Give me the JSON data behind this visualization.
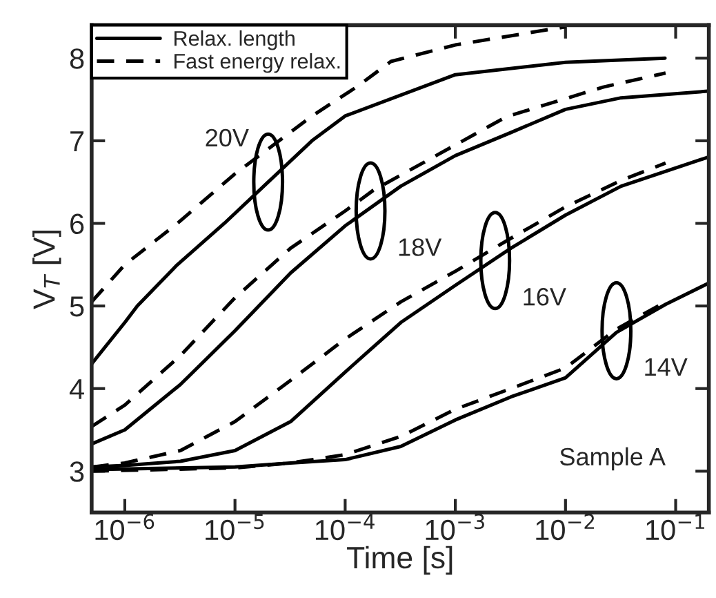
{
  "chart_data": {
    "type": "line",
    "xlabel": "Time [s]",
    "ylabel": "V$_{T}$ [V]",
    "log": "x",
    "legend": "top left",
    "marker": "none",
    "xlim": [
      5e-07,
      0.2
    ],
    "ylim": [
      2.5,
      8.4
    ],
    "xticks": [
      {
        "value": 1e-06,
        "label": "10$^{−6}$"
      },
      {
        "value": 1e-05,
        "label": "10$^{−5}$"
      },
      {
        "value": 0.0001,
        "label": "10$^{−4}$"
      },
      {
        "value": 0.001,
        "label": "10$^{−3}$"
      },
      {
        "value": 0.01,
        "label": "10$^{−2}$"
      },
      {
        "value": 0.1,
        "label": "10$^{−1}$"
      }
    ],
    "yticks": [
      3,
      4,
      5,
      6,
      7,
      8
    ],
    "series": [
      {
        "name": "Relax. length",
        "color": "#000000",
        "line_style": "solid",
        "x": [
          5e-07,
          1e-06,
          1.3e-06,
          3e-06,
          8e-06,
          2e-05,
          5e-05,
          0.0001,
          0.001,
          0.01,
          0.08
        ],
        "values": [
          4.3,
          4.8,
          5.0,
          5.5,
          6.0,
          6.5,
          7.0,
          7.3,
          7.8,
          7.95,
          8.0
        ]
      },
      {
        "name": "Fast energy relax.",
        "color": "#000000",
        "line_style": "dashed",
        "x": [
          5e-07,
          1e-06,
          3e-06,
          1e-05,
          2e-05,
          5e-05,
          0.00013,
          0.00026,
          0.001,
          0.01
        ],
        "values": [
          5.05,
          5.5,
          6.0,
          6.6,
          6.9,
          7.3,
          7.66,
          7.96,
          8.16,
          8.38
        ]
      },
      {
        "color": "#000000",
        "line_style": "solid",
        "x": [
          5e-07,
          1e-06,
          3.2e-06,
          1e-05,
          3.2e-05,
          0.0001,
          0.00032,
          0.001,
          0.0032,
          0.01,
          0.032,
          0.195
        ],
        "values": [
          3.33,
          3.5,
          4.05,
          4.7,
          5.4,
          5.97,
          6.45,
          6.82,
          7.1,
          7.38,
          7.52,
          7.6
        ]
      },
      {
        "color": "#000000",
        "line_style": "dashed",
        "x": [
          5e-07,
          1e-06,
          3.2e-06,
          1e-05,
          3.2e-05,
          0.0001,
          0.00018,
          0.0029,
          0.022,
          0.081
        ],
        "values": [
          3.54,
          3.8,
          4.4,
          5.1,
          5.7,
          6.15,
          6.4,
          7.29,
          7.65,
          7.82
        ]
      },
      {
        "color": "#000000",
        "line_style": "solid",
        "x": [
          5e-07,
          1e-06,
          3.2e-06,
          1e-05,
          3.2e-05,
          0.0001,
          0.00032,
          0.001,
          0.0032,
          0.01,
          0.032,
          0.195
        ],
        "values": [
          3.05,
          3.07,
          3.12,
          3.25,
          3.6,
          4.2,
          4.8,
          5.25,
          5.7,
          6.1,
          6.45,
          6.8
        ]
      },
      {
        "color": "#000000",
        "line_style": "dashed",
        "x": [
          5e-07,
          1e-06,
          3.2e-06,
          1e-05,
          3.2e-05,
          0.0001,
          0.00032,
          0.001,
          0.0032,
          0.01,
          0.032,
          0.081
        ],
        "values": [
          3.05,
          3.1,
          3.25,
          3.6,
          4.1,
          4.6,
          5.05,
          5.42,
          5.82,
          6.2,
          6.52,
          6.73
        ]
      },
      {
        "color": "#000000",
        "line_style": "solid",
        "x": [
          5e-07,
          1e-05,
          3.2e-05,
          0.0001,
          0.00032,
          0.001,
          0.0032,
          0.01,
          0.029,
          0.081,
          0.195
        ],
        "values": [
          3.02,
          3.05,
          3.1,
          3.14,
          3.3,
          3.62,
          3.9,
          4.13,
          4.68,
          5.02,
          5.27
        ]
      },
      {
        "color": "#000000",
        "line_style": "dashed",
        "x": [
          5e-07,
          1e-05,
          3.2e-05,
          0.0001,
          0.00032,
          0.001,
          0.0032,
          0.01,
          0.029,
          0.081
        ],
        "values": [
          3.0,
          3.04,
          3.1,
          3.2,
          3.42,
          3.75,
          4.0,
          4.25,
          4.72,
          5.05
        ]
      }
    ],
    "annotations": [
      {
        "text": "20V",
        "x": 2e-05,
        "y": 6.5
      },
      {
        "text": "18V",
        "x": 0.00017,
        "y": 6.15
      },
      {
        "text": "16V",
        "x": 0.0023,
        "y": 5.55
      },
      {
        "text": "14V",
        "x": 0.029,
        "y": 4.7
      },
      "Sample A"
    ]
  }
}
